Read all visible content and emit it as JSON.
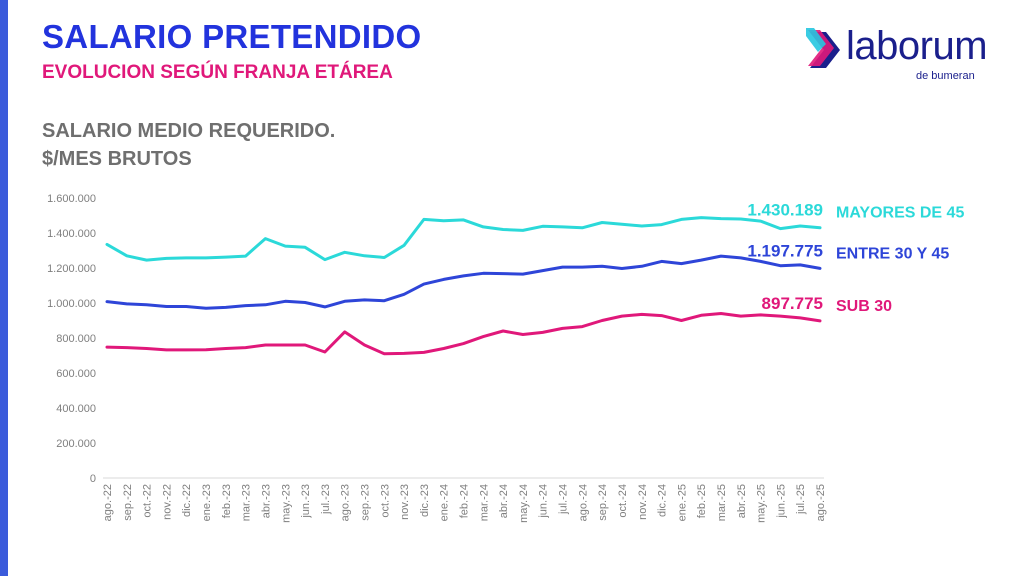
{
  "header": {
    "title": "SALARIO PRETENDIDO",
    "subtitle": "EVOLUCION SEGÚN FRANJA ETÁREA"
  },
  "logo": {
    "text": "laborum",
    "sub": "de bumeran",
    "icon": "laborum-chevron-icon",
    "colors": [
      "#1a1f8c",
      "#e0187a",
      "#25c7e0"
    ]
  },
  "chart_data": {
    "type": "line",
    "title_line1": "SALARIO MEDIO REQUERIDO.",
    "title_line2": "$/MES BRUTOS",
    "ylim": [
      0,
      1600000
    ],
    "yticks": [
      0,
      200000,
      400000,
      600000,
      800000,
      1000000,
      1200000,
      1400000,
      1600000
    ],
    "ytick_labels": [
      "0",
      "200.000",
      "400.000",
      "600.000",
      "800.000",
      "1.000.000",
      "1.200.000",
      "1.400.000",
      "1.600.000"
    ],
    "grid": false,
    "legend": "right",
    "categories": [
      "ago.-22",
      "sep.-22",
      "oct.-22",
      "nov.-22",
      "dic.-22",
      "ene.-23",
      "feb.-23",
      "mar.-23",
      "abr.-23",
      "may.-23",
      "jun.-23",
      "jul.-23",
      "ago.-23",
      "sep.-23",
      "oct.-23",
      "nov.-23",
      "dic.-23",
      "ene.-24",
      "feb.-24",
      "mar.-24",
      "abr.-24",
      "may.-24",
      "jun.-24",
      "jul.-24",
      "ago.-24",
      "sep.-24",
      "oct.-24",
      "nov.-24",
      "dic.-24",
      "ene.-25",
      "feb.-25",
      "mar.-25",
      "abr.-25",
      "may.-25",
      "jun.-25",
      "jul.-25",
      "ago.-25"
    ],
    "series": [
      {
        "name": "MAYORES DE 45",
        "end_label": "1.430.189",
        "color": "#2bd9d9",
        "values": [
          1335000,
          1270000,
          1245000,
          1255000,
          1258000,
          1258000,
          1262000,
          1268000,
          1368000,
          1325000,
          1318000,
          1248000,
          1290000,
          1270000,
          1260000,
          1330000,
          1478000,
          1470000,
          1475000,
          1435000,
          1420000,
          1415000,
          1438000,
          1435000,
          1430000,
          1460000,
          1450000,
          1440000,
          1448000,
          1478000,
          1488000,
          1482000,
          1480000,
          1468000,
          1425000,
          1440000,
          1430189
        ]
      },
      {
        "name": "ENTRE 30 Y 45",
        "end_label": "1.197.775",
        "color": "#2e45d8",
        "values": [
          1008000,
          995000,
          990000,
          980000,
          980000,
          970000,
          975000,
          985000,
          990000,
          1010000,
          1003000,
          978000,
          1010000,
          1018000,
          1013000,
          1050000,
          1108000,
          1135000,
          1155000,
          1170000,
          1168000,
          1165000,
          1185000,
          1205000,
          1205000,
          1210000,
          1197000,
          1210000,
          1238000,
          1225000,
          1245000,
          1268000,
          1258000,
          1238000,
          1213000,
          1218000,
          1197775
        ]
      },
      {
        "name": "SUB 30",
        "end_label": "897.775",
        "color": "#e0187a",
        "values": [
          748000,
          745000,
          740000,
          732000,
          732000,
          733000,
          740000,
          745000,
          760000,
          760000,
          760000,
          720000,
          835000,
          760000,
          710000,
          712000,
          718000,
          740000,
          768000,
          808000,
          840000,
          820000,
          832000,
          855000,
          865000,
          900000,
          925000,
          935000,
          928000,
          900000,
          930000,
          940000,
          925000,
          932000,
          925000,
          915000,
          897775
        ]
      }
    ]
  }
}
